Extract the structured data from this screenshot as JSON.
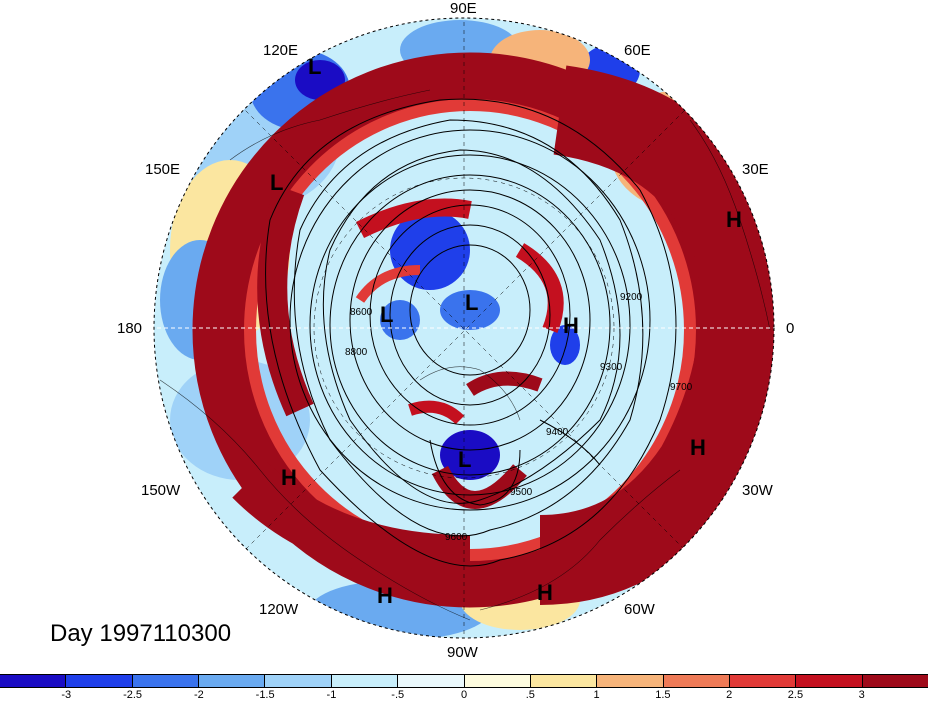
{
  "title": "Day 1997110300",
  "projection": "north-polar-stereographic",
  "map": {
    "center_lat": 90,
    "longitude_labels": [
      "90E",
      "60E",
      "30E",
      "0",
      "30W",
      "60W",
      "90W",
      "120W",
      "150W",
      "180",
      "150E",
      "120E"
    ],
    "pressure_systems": [
      {
        "label": "L",
        "region": "East Siberia (near 115E)"
      },
      {
        "label": "L",
        "region": "Sea of Okhotsk (near 150E)"
      },
      {
        "label": "L",
        "region": "near 180"
      },
      {
        "label": "L",
        "region": "Arctic Ocean"
      },
      {
        "label": "L",
        "region": "Hudson Bay"
      },
      {
        "label": "H",
        "region": "North Africa / Mediterranean"
      },
      {
        "label": "H",
        "region": "Norway"
      },
      {
        "label": "H",
        "region": "North Atlantic (near 30W)"
      },
      {
        "label": "H",
        "region": "Eastern Pacific (near 150W)"
      },
      {
        "label": "H",
        "region": "Mexico / Gulf (near 100W)"
      },
      {
        "label": "H",
        "region": "Caribbean (near 70W)"
      }
    ],
    "contour_labels": [
      "9400",
      "9500",
      "9600",
      "9700",
      "8800",
      "8600",
      "9200",
      "9300"
    ]
  },
  "colorbar": {
    "colors": [
      "#1a0cc4",
      "#1f3fea",
      "#3a73ed",
      "#6aaaf0",
      "#9fd2f8",
      "#c8eefb",
      "#eaf8fc",
      "#fdfbde",
      "#fbe6a0",
      "#f6b47a",
      "#ee7a57",
      "#e13a37",
      "#c4101f",
      "#9e0a1a"
    ],
    "tick_labels": [
      "-3",
      "-2.5",
      "-2",
      "-1.5",
      "-1",
      "-.5",
      "0",
      ".5",
      "1",
      "1.5",
      "2",
      "2.5",
      "3"
    ]
  }
}
